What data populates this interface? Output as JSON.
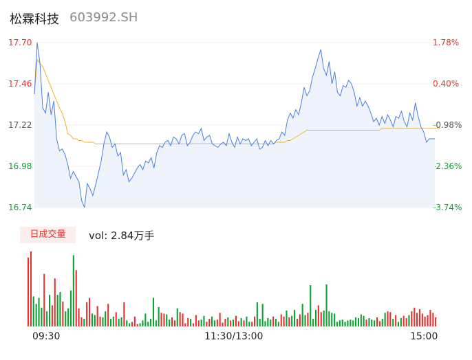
{
  "header": {
    "name": "松霖科技",
    "code": "603992.SH"
  },
  "volume_panel": {
    "tab_label": "日成交量",
    "vol_text": "vol: 2.84万手"
  },
  "colors": {
    "price_line": "#4a7fe0",
    "avg_line": "#f0b429",
    "up": "#e8312f",
    "down": "#0ca233",
    "neutral": "#555555",
    "area_fill": "#eef3fc"
  },
  "chart_data": [
    {
      "type": "line",
      "title": "",
      "x_ticks": [
        "09:30",
        "11:30/13:00",
        "15:00"
      ],
      "y_ticks_left": [
        "17.70",
        "17.46",
        "17.22",
        "16.98",
        "16.74"
      ],
      "y_ticks_right": [
        "1.78%",
        "0.40%",
        "-0.98%",
        "-2.36%",
        "-3.74%"
      ],
      "ylim": [
        16.74,
        17.7
      ],
      "reference_price": 17.39,
      "series": [
        {
          "key": "price",
          "values": [
            17.4,
            17.7,
            17.58,
            17.32,
            17.29,
            17.41,
            17.28,
            17.36,
            17.14,
            17.07,
            17.08,
            17.05,
            16.99,
            16.91,
            16.95,
            16.92,
            16.89,
            16.78,
            16.74,
            16.88,
            16.85,
            16.81,
            16.87,
            16.94,
            17.01,
            17.11,
            17.18,
            17.15,
            17.09,
            17.11,
            17.04,
            17.06,
            16.93,
            16.96,
            16.89,
            16.91,
            16.94,
            16.97,
            16.99,
            16.96,
            17.01,
            17.0,
            17.03,
            16.97,
            17.06,
            17.1,
            17.09,
            17.12,
            17.13,
            17.1,
            17.15,
            17.14,
            17.11,
            17.16,
            17.17,
            17.1,
            17.12,
            17.16,
            17.18,
            17.17,
            17.2,
            17.13,
            17.15,
            17.16,
            17.11,
            17.1,
            17.09,
            17.11,
            17.12,
            17.1,
            17.17,
            17.12,
            17.09,
            17.15,
            17.11,
            17.14,
            17.13,
            17.14,
            17.1,
            17.12,
            17.14,
            17.08,
            17.09,
            17.13,
            17.1,
            17.13,
            17.11,
            17.13,
            17.14,
            17.18,
            17.16,
            17.25,
            17.29,
            17.26,
            17.31,
            17.28,
            17.35,
            17.44,
            17.39,
            17.42,
            17.5,
            17.55,
            17.61,
            17.66,
            17.55,
            17.51,
            17.59,
            17.46,
            17.53,
            17.41,
            17.39,
            17.45,
            17.44,
            17.48,
            17.46,
            17.41,
            17.33,
            17.38,
            17.33,
            17.36,
            17.33,
            17.29,
            17.24,
            17.26,
            17.22,
            17.27,
            17.23,
            17.28,
            17.25,
            17.21,
            17.27,
            17.26,
            17.3,
            17.24,
            17.21,
            17.29,
            17.25,
            17.35,
            17.27,
            17.21,
            17.18,
            17.12,
            17.14,
            17.14,
            17.14
          ],
          "first_minutes": 0
        },
        {
          "key": "avg",
          "values": [
            17.4,
            17.6,
            17.58,
            17.56,
            17.52,
            17.48,
            17.44,
            17.4,
            17.36,
            17.32,
            17.29,
            17.24,
            17.17,
            17.16,
            17.14,
            17.14,
            17.13,
            17.13,
            17.12,
            17.12,
            17.12,
            17.12,
            17.11,
            17.11,
            17.11,
            17.11,
            17.11,
            17.11,
            17.11,
            17.11,
            17.11,
            17.11,
            17.11,
            17.11,
            17.11,
            17.11,
            17.11,
            17.11,
            17.11,
            17.11,
            17.11,
            17.11,
            17.11,
            17.11,
            17.11,
            17.11,
            17.11,
            17.11,
            17.11,
            17.11,
            17.11,
            17.11,
            17.11,
            17.11,
            17.11,
            17.11,
            17.11,
            17.11,
            17.11,
            17.11,
            17.11,
            17.11,
            17.11,
            17.11,
            17.11,
            17.11,
            17.11,
            17.11,
            17.11,
            17.11,
            17.11,
            17.11,
            17.11,
            17.11,
            17.11,
            17.11,
            17.11,
            17.11,
            17.11,
            17.11,
            17.11,
            17.11,
            17.11,
            17.11,
            17.11,
            17.11,
            17.11,
            17.12,
            17.12,
            17.12,
            17.12,
            17.13,
            17.13,
            17.14,
            17.15,
            17.16,
            17.17,
            17.18,
            17.19,
            17.19,
            17.19,
            17.19,
            17.19,
            17.19,
            17.19,
            17.19,
            17.19,
            17.19,
            17.19,
            17.19,
            17.19,
            17.19,
            17.19,
            17.19,
            17.19,
            17.19,
            17.19,
            17.19,
            17.19,
            17.19,
            17.19,
            17.19,
            17.19,
            17.19,
            17.19,
            17.2,
            17.2,
            17.2,
            17.2,
            17.2,
            17.2,
            17.2,
            17.2,
            17.2,
            17.2,
            17.2,
            17.2,
            17.2,
            17.2,
            17.2,
            17.2,
            17.2,
            17.2,
            17.2,
            17.2,
            17.2,
            17.2
          ]
        }
      ]
    },
    {
      "type": "bar",
      "title": "",
      "ylim": [
        0,
        100
      ],
      "values": [
        92,
        100,
        40,
        30,
        38,
        25,
        70,
        20,
        42,
        28,
        64,
        42,
        46,
        33,
        20,
        24,
        48,
        95,
        75,
        24,
        12,
        10,
        32,
        38,
        17,
        15,
        27,
        13,
        12,
        20,
        30,
        10,
        13,
        19,
        10,
        12,
        32,
        8,
        4,
        6,
        13,
        3,
        4,
        8,
        17,
        6,
        10,
        38,
        8,
        26,
        18,
        17,
        16,
        9,
        12,
        8,
        24,
        19,
        17,
        4,
        11,
        10,
        4,
        15,
        8,
        9,
        14,
        6,
        10,
        13,
        8,
        9,
        18,
        5,
        10,
        12,
        8,
        9,
        14,
        7,
        11,
        8,
        13,
        6,
        6,
        13,
        32,
        10,
        30,
        7,
        11,
        9,
        13,
        10,
        6,
        16,
        13,
        21,
        12,
        14,
        22,
        10,
        16,
        30,
        15,
        18,
        55,
        10,
        22,
        28,
        19,
        21,
        56,
        20,
        18,
        17,
        6,
        8,
        9,
        6,
        8,
        9,
        8,
        12,
        11,
        16,
        14,
        9,
        11,
        9,
        8,
        12,
        7,
        10,
        18,
        20,
        19,
        10,
        15,
        6,
        11,
        14,
        11,
        15,
        20,
        25,
        18,
        23,
        17,
        13,
        15,
        22,
        18,
        12
      ],
      "directions": [
        "up",
        "up",
        "down",
        "down",
        "down",
        "down",
        "up",
        "down",
        "down",
        "up",
        "up",
        "down",
        "down",
        "up",
        "down",
        "down",
        "down",
        "down",
        "up",
        "up",
        "up",
        "down",
        "up",
        "up",
        "down",
        "down",
        "up",
        "up",
        "down",
        "down",
        "up",
        "down",
        "down",
        "up",
        "down",
        "down",
        "up",
        "down",
        "down",
        "up",
        "up",
        "up",
        "down",
        "down",
        "down",
        "down",
        "down",
        "down",
        "down",
        "down",
        "up",
        "up",
        "down",
        "down",
        "up",
        "up",
        "down",
        "up",
        "up",
        "up",
        "up",
        "down",
        "up",
        "up",
        "up",
        "down",
        "down",
        "up",
        "up",
        "down",
        "down",
        "up",
        "up",
        "up",
        "up",
        "down",
        "up",
        "down",
        "up",
        "up",
        "down",
        "up",
        "down",
        "down",
        "up",
        "up",
        "down",
        "down",
        "down",
        "down",
        "down",
        "down",
        "up",
        "down",
        "down",
        "up",
        "up",
        "down",
        "up",
        "down",
        "down",
        "up",
        "up",
        "down",
        "down",
        "up",
        "down",
        "down",
        "down",
        "up",
        "up",
        "down",
        "down",
        "down",
        "down",
        "down",
        "down",
        "down",
        "down",
        "down",
        "down",
        "down",
        "down",
        "down",
        "down",
        "down",
        "down",
        "up",
        "down",
        "down",
        "down",
        "up",
        "up",
        "down",
        "down",
        "up",
        "up",
        "down",
        "up",
        "down",
        "down",
        "up",
        "up",
        "down",
        "up",
        "up",
        "up",
        "up",
        "up",
        "up",
        "up",
        "up",
        "up",
        "up"
      ]
    }
  ]
}
